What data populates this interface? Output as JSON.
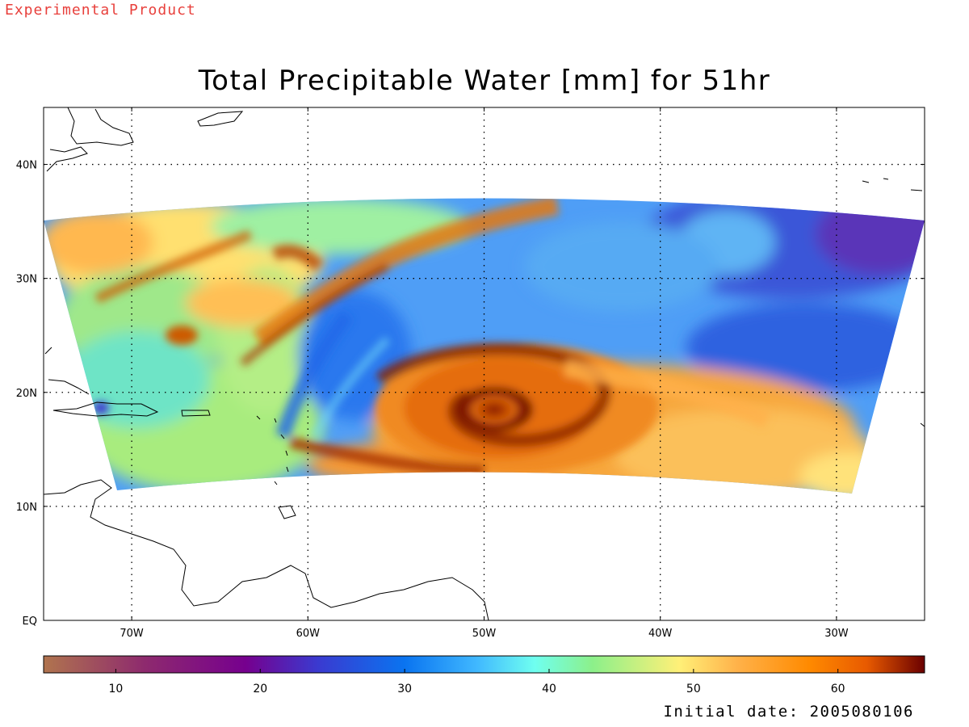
{
  "header": {
    "badge": "Experimental Product",
    "title": "Total Precipitable Water [mm] for 51hr"
  },
  "footer": {
    "initial_date": "Initial date: 2005080106"
  },
  "map": {
    "lon_range": [
      -75,
      -25
    ],
    "lat_range": [
      0,
      45
    ],
    "lon_ticks": [
      {
        "value": -70,
        "label": "70W"
      },
      {
        "value": -60,
        "label": "60W"
      },
      {
        "value": -50,
        "label": "50W"
      },
      {
        "value": -40,
        "label": "40W"
      },
      {
        "value": -30,
        "label": "30W"
      }
    ],
    "lat_ticks": [
      {
        "value": 0,
        "label": "EQ"
      },
      {
        "value": 10,
        "label": "10N"
      },
      {
        "value": 20,
        "label": "20N"
      },
      {
        "value": 30,
        "label": "30N"
      },
      {
        "value": 40,
        "label": "40N"
      }
    ],
    "grid": "dotted",
    "hurricane_center": {
      "lon": -50,
      "lat": 18.5
    },
    "colors": {
      "coast": "#000000",
      "grid": "#000000"
    }
  },
  "colorbar": {
    "min": 5,
    "max": 66,
    "ticks": [
      "10",
      "20",
      "30",
      "40",
      "50",
      "60"
    ],
    "tick_values": [
      10,
      20,
      30,
      40,
      50,
      60
    ],
    "stops": [
      {
        "value": 5,
        "color": "#b0744e"
      },
      {
        "value": 12,
        "color": "#8e2a6e"
      },
      {
        "value": 19,
        "color": "#76008e"
      },
      {
        "value": 24,
        "color": "#3a3ad0"
      },
      {
        "value": 30,
        "color": "#0a74f0"
      },
      {
        "value": 35,
        "color": "#40b8ff"
      },
      {
        "value": 39,
        "color": "#6ffff0"
      },
      {
        "value": 43,
        "color": "#8cf08a"
      },
      {
        "value": 49,
        "color": "#fff078"
      },
      {
        "value": 53,
        "color": "#ffb24a"
      },
      {
        "value": 58,
        "color": "#ff8a00"
      },
      {
        "value": 62,
        "color": "#e85a00"
      },
      {
        "value": 66,
        "color": "#6a0000"
      }
    ]
  }
}
